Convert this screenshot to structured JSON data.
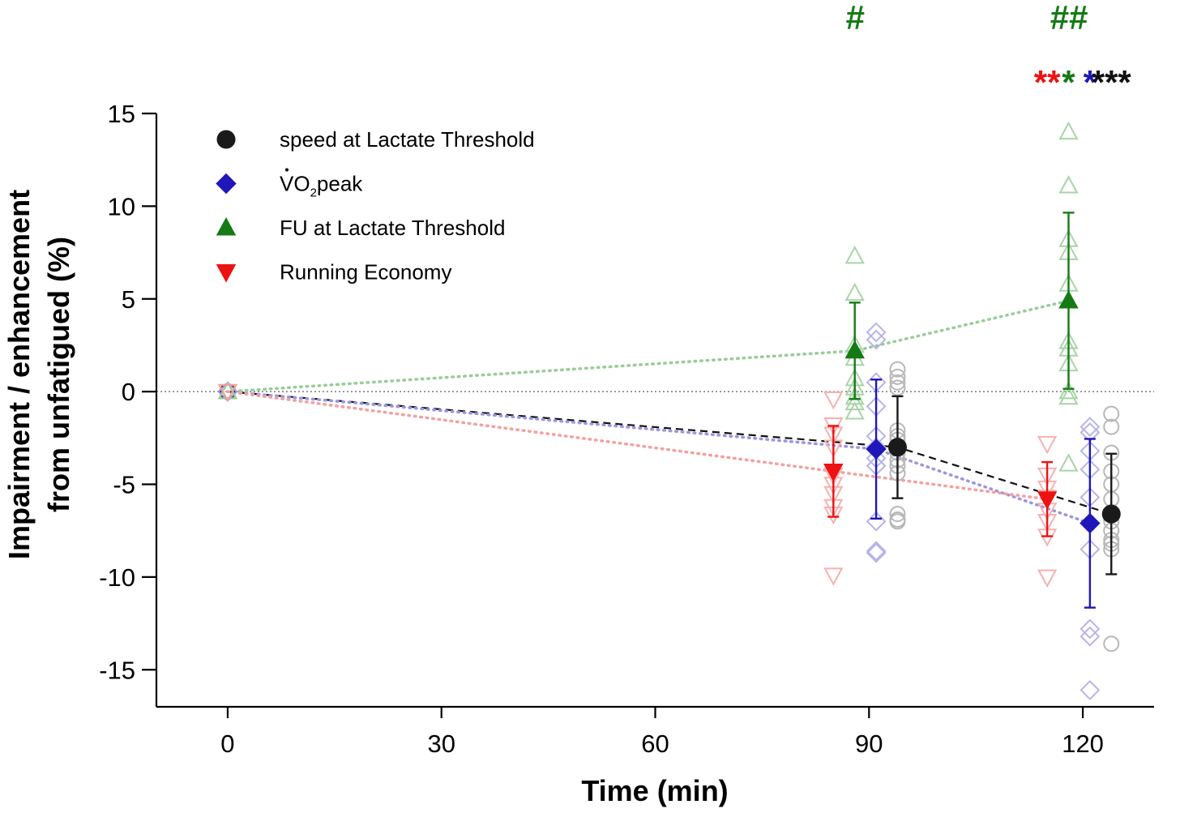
{
  "chart_data": {
    "type": "scatter",
    "xlabel": "Time (min)",
    "ylabel_line1": "Impairment / enhancement",
    "ylabel_line2": "from unfatigued (%)",
    "xlim": [
      -10,
      130
    ],
    "ylim": [
      -17,
      15
    ],
    "xticks": [
      {
        "value": 0,
        "label": "0"
      },
      {
        "value": 30,
        "label": "30"
      },
      {
        "value": 60,
        "label": "60"
      },
      {
        "value": 90,
        "label": "90"
      },
      {
        "value": 120,
        "label": "120"
      }
    ],
    "yticks": [
      {
        "value": 15,
        "label": "15"
      },
      {
        "value": 10,
        "label": "10"
      },
      {
        "value": 5,
        "label": "5"
      },
      {
        "value": 0,
        "label": "0"
      },
      {
        "value": -5,
        "label": "-5"
      },
      {
        "value": -10,
        "label": "-10"
      },
      {
        "value": -15,
        "label": "-15"
      }
    ],
    "reference_line_y": 0,
    "legend": [
      {
        "label": "speed at Lactate Threshold",
        "marker": "circle",
        "color": "#1a1a1a"
      },
      {
        "label_main": "VO",
        "label_sub": "2",
        "label_tail": "peak",
        "marker": "diamond",
        "color": "#1f17b8"
      },
      {
        "label": "FU at Lactate Threshold",
        "marker": "triangle-up",
        "color": "#157a15"
      },
      {
        "label": "Running Economy",
        "marker": "triangle-down",
        "color": "#ee1111"
      }
    ],
    "series": [
      {
        "name": "speed at Lactate Threshold",
        "marker": "circle",
        "color": "#1a1a1a",
        "light_color": "#b8b8b8",
        "line_style": "dashed",
        "line_color": "#111111",
        "means": [
          {
            "x": 0,
            "y": 0,
            "err": 0
          },
          {
            "x": 94,
            "y": -3.0,
            "err": 2.75
          },
          {
            "x": 124,
            "y": -6.6,
            "err": 3.25
          }
        ],
        "individual": [
          {
            "x": 94,
            "values": [
              1.2,
              0.8,
              0.5,
              0.2,
              -2.1,
              -2.4,
              -2.6,
              -3.0,
              -3.3,
              -3.7,
              -4.0,
              -4.4,
              -6.6,
              -6.9,
              -7.0
            ]
          },
          {
            "x": 124,
            "values": [
              -1.2,
              -1.9,
              -3.3,
              -4.3,
              -5.0,
              -5.8,
              -6.5,
              -7.0,
              -7.5,
              -8.0,
              -8.2,
              -8.5,
              -13.6
            ]
          }
        ]
      },
      {
        "name": "VO2peak",
        "marker": "diamond",
        "color": "#1f17b8",
        "light_color": "#b8b4e8",
        "line_style": "dotted",
        "line_color": "#9a96e0",
        "means": [
          {
            "x": 0,
            "y": 0,
            "err": 0
          },
          {
            "x": 91,
            "y": -3.1,
            "err": 3.75
          },
          {
            "x": 121,
            "y": -7.1,
            "err": 4.55
          }
        ],
        "individual": [
          {
            "x": 91,
            "values": [
              3.2,
              2.8,
              0.5,
              -0.8,
              -2.4,
              -3.0,
              -3.6,
              -4.0,
              -7.0,
              -8.6,
              -8.7
            ]
          },
          {
            "x": 121,
            "values": [
              -1.9,
              -2.2,
              -3.2,
              -4.2,
              -5.7,
              -8.5,
              -12.8,
              -13.2,
              -16.1
            ]
          }
        ]
      },
      {
        "name": "FU at Lactate Threshold",
        "marker": "triangle-up",
        "color": "#157a15",
        "light_color": "#a8d4a8",
        "line_style": "dotted",
        "line_color": "#98cc98",
        "means": [
          {
            "x": 0,
            "y": 0,
            "err": 0
          },
          {
            "x": 88,
            "y": 2.2,
            "err": 2.6
          },
          {
            "x": 118,
            "y": 4.9,
            "err": 4.75
          }
        ],
        "individual": [
          {
            "x": 88,
            "values": [
              7.3,
              5.3,
              2.5,
              1.8,
              0.7,
              0.2,
              -0.3,
              -0.6,
              -1.1
            ]
          },
          {
            "x": 118,
            "values": [
              14.0,
              11.1,
              8.2,
              7.5,
              5.8,
              2.7,
              2.3,
              1.5,
              0.0,
              -0.3,
              -3.9
            ]
          }
        ]
      },
      {
        "name": "Running Economy",
        "marker": "triangle-down",
        "color": "#ee1111",
        "light_color": "#f7b0b0",
        "line_style": "dotted",
        "line_color": "#f4a0a0",
        "means": [
          {
            "x": 0,
            "y": 0,
            "err": 0
          },
          {
            "x": 85,
            "y": -4.3,
            "err": 2.45
          },
          {
            "x": 115,
            "y": -5.8,
            "err": 2.0
          }
        ],
        "individual": [
          {
            "x": 85,
            "values": [
              -0.4,
              -1.8,
              -2.3,
              -3.0,
              -4.5,
              -5.0,
              -5.5,
              -6.2,
              -6.6,
              -9.9
            ]
          },
          {
            "x": 115,
            "values": [
              -2.8,
              -4.5,
              -5.2,
              -5.7,
              -6.4,
              -7.0,
              -7.8,
              -10.0
            ]
          }
        ]
      }
    ],
    "annotations": [
      {
        "text": "#",
        "color": "#157a15",
        "x": 88,
        "row": "top"
      },
      {
        "text": "##",
        "color": "#157a15",
        "x": 118,
        "row": "top"
      },
      {
        "text": "**",
        "color": "#ee1111",
        "x": 115,
        "row": "second"
      },
      {
        "text": "*",
        "color": "#157a15",
        "x": 118,
        "row": "second"
      },
      {
        "text": "*",
        "color": "#1f17b8",
        "x": 121,
        "row": "second"
      },
      {
        "text": "***",
        "color": "#111111",
        "x": 124,
        "row": "second"
      }
    ]
  }
}
